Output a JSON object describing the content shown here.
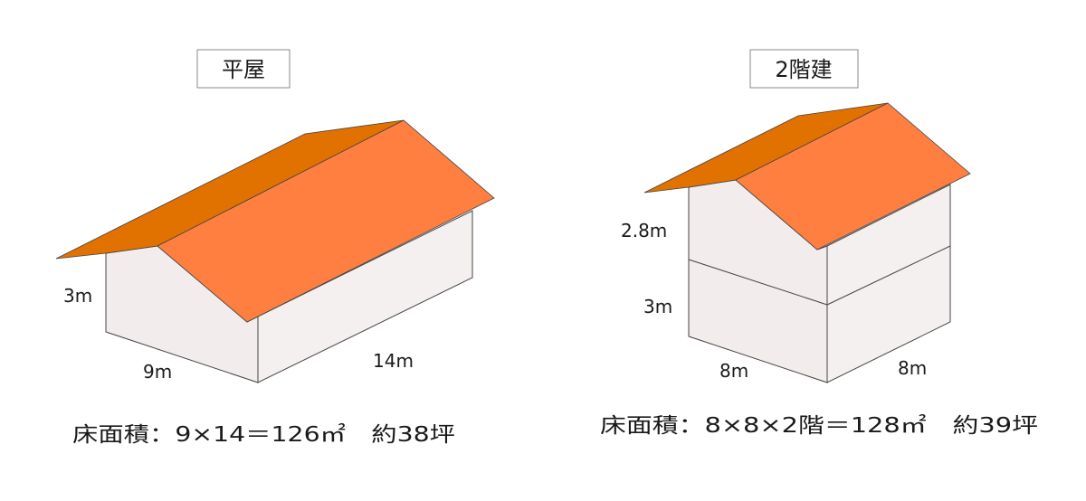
{
  "colors": {
    "roof_dark": "#e27200",
    "roof_light": "#ff7f40",
    "wall": "#f3ecec"
  },
  "single_story": {
    "title": "平屋",
    "height_label": "3m",
    "width_label": "9m",
    "depth_label": "14m",
    "floor_area": "床面積：9×14＝126㎡　約38坪"
  },
  "two_story": {
    "title": "2階建",
    "upper_height_label": "2.8m",
    "lower_height_label": "3m",
    "width_label": "8m",
    "depth_label": "8m",
    "floor_area": "床面積：8×8×2階＝128㎡　約39坪"
  }
}
